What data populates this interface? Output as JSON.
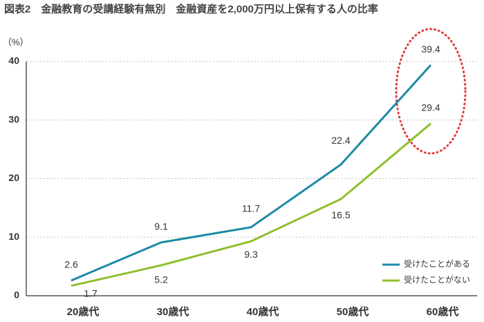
{
  "chart_data": {
    "type": "line",
    "title": "図表2　金融教育の受講経験有無別　金融資産を2,000万円以上保有する人の比率",
    "y_label": "（%）",
    "categories": [
      "20歳代",
      "30歳代",
      "40歳代",
      "50歳代",
      "60歳代"
    ],
    "series": [
      {
        "name": "受けたことがある",
        "color": "#1b8aa6",
        "values": [
          2.6,
          9.1,
          11.7,
          22.4,
          39.4
        ]
      },
      {
        "name": "受けたことがない",
        "color": "#8dbf2c",
        "values": [
          1.7,
          5.2,
          9.3,
          16.5,
          29.4
        ]
      }
    ],
    "ylim": [
      0,
      40
    ],
    "yticks": [
      0,
      10,
      20,
      30,
      40
    ],
    "grid": true,
    "legend": "lower right"
  }
}
